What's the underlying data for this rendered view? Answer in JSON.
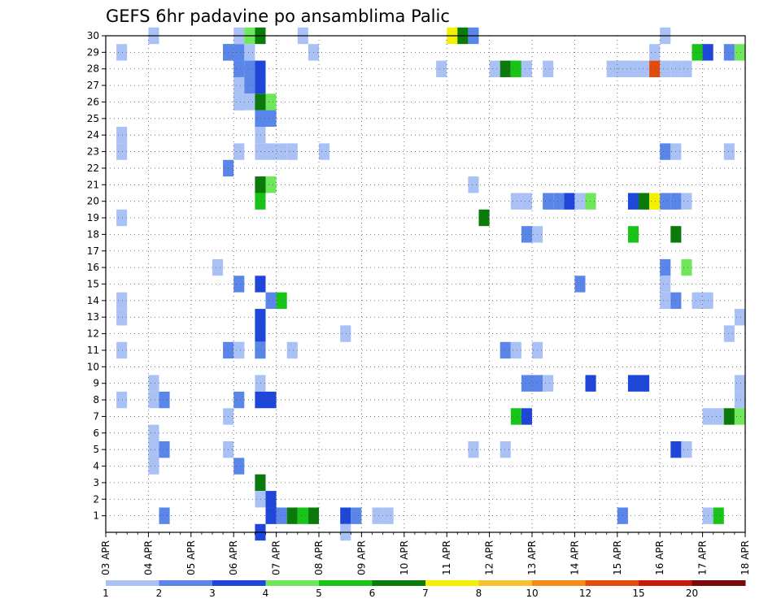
{
  "chart_data": {
    "type": "heatmap",
    "title": "GEFS 6hr padavine po ansamblima Palic",
    "x_ticks": [
      "03 APR",
      "04 APR",
      "05 APR",
      "06 APR",
      "07 APR",
      "08 APR",
      "09 APR",
      "10 APR",
      "11 APR",
      "12 APR",
      "13 APR",
      "14 APR",
      "15 APR",
      "16 APR",
      "17 APR",
      "18 APR"
    ],
    "y_ticks": [
      "1",
      "2",
      "3",
      "4",
      "5",
      "6",
      "7",
      "8",
      "9",
      "10",
      "11",
      "12",
      "13",
      "14",
      "15",
      "16",
      "17",
      "18",
      "19",
      "20",
      "21",
      "22",
      "23",
      "24",
      "25",
      "26",
      "27",
      "28",
      "29",
      "30"
    ],
    "x_range_steps": [
      0,
      60
    ],
    "y_range": [
      0,
      30
    ],
    "grid": true,
    "steps_per_day": 4,
    "colorbar": {
      "labels": [
        "1",
        "2",
        "3",
        "4",
        "5",
        "6",
        "7",
        "8",
        "10",
        "12",
        "15",
        "20"
      ],
      "colors": [
        "#a9c1f5",
        "#5a86ea",
        "#1e46d8",
        "#6ee85a",
        "#18c418",
        "#0a7a0a",
        "#f5f000",
        "#f8c030",
        "#f58c18",
        "#e34a0e",
        "#c81a0a",
        "#780a0a"
      ]
    },
    "cells": [
      [
        0,
        1,
        0
      ],
      [
        0,
        1,
        8
      ],
      [
        0,
        1,
        9
      ],
      [
        0,
        1,
        11
      ],
      [
        0,
        1,
        13
      ],
      [
        0,
        1,
        14
      ],
      [
        1,
        1,
        1
      ],
      [
        1,
        1,
        8
      ],
      [
        1,
        1,
        24
      ],
      [
        1,
        2,
        29
      ],
      [
        1,
        1,
        6
      ],
      [
        1,
        1,
        7
      ],
      [
        1,
        2,
        16
      ],
      [
        1,
        1,
        23
      ],
      [
        1,
        1,
        24
      ],
      [
        1,
        2,
        25
      ],
      [
        1,
        2,
        17
      ],
      [
        3,
        1,
        8
      ],
      [
        3,
        1,
        11
      ],
      [
        3,
        1,
        13
      ],
      [
        3,
        1,
        14
      ],
      [
        3,
        1,
        19
      ],
      [
        3,
        1,
        23
      ],
      [
        3,
        1,
        24
      ],
      [
        3,
        1,
        29
      ],
      [
        6,
        1,
        9
      ],
      [
        6,
        1,
        8
      ],
      [
        6,
        1,
        30
      ],
      [
        6,
        2,
        5
      ],
      [
        6,
        1,
        6
      ],
      [
        6,
        1,
        4
      ],
      [
        6,
        1,
        5
      ],
      [
        7,
        2,
        1
      ],
      [
        7,
        2,
        5
      ],
      [
        7,
        2,
        8
      ],
      [
        12,
        1,
        16
      ],
      [
        13,
        5,
        29
      ],
      [
        13,
        2,
        29
      ],
      [
        13,
        1,
        5
      ],
      [
        13,
        2,
        11
      ],
      [
        13,
        1,
        7
      ],
      [
        13,
        2,
        22
      ],
      [
        14,
        1,
        28
      ],
      [
        14,
        2,
        28
      ],
      [
        14,
        1,
        30
      ],
      [
        14,
        2,
        29
      ],
      [
        14,
        2,
        26
      ],
      [
        14,
        1,
        26
      ],
      [
        14,
        1,
        27
      ],
      [
        14,
        1,
        23
      ],
      [
        14,
        2,
        15
      ],
      [
        14,
        1,
        11
      ],
      [
        14,
        1,
        11
      ],
      [
        14,
        2,
        8
      ],
      [
        14,
        2,
        4
      ],
      [
        15,
        4,
        30
      ],
      [
        15,
        1,
        29
      ],
      [
        15,
        2,
        28
      ],
      [
        15,
        2,
        27
      ],
      [
        15,
        1,
        26
      ],
      [
        16,
        6,
        30
      ],
      [
        16,
        3,
        28
      ],
      [
        16,
        3,
        27
      ],
      [
        16,
        6,
        26
      ],
      [
        16,
        2,
        25
      ],
      [
        16,
        1,
        24
      ],
      [
        16,
        1,
        23
      ],
      [
        16,
        6,
        21
      ],
      [
        16,
        5,
        20
      ],
      [
        16,
        3,
        15
      ],
      [
        16,
        3,
        13
      ],
      [
        16,
        3,
        12
      ],
      [
        16,
        4,
        11
      ],
      [
        16,
        1,
        11
      ],
      [
        16,
        1,
        9
      ],
      [
        16,
        3,
        8
      ],
      [
        16,
        6,
        3
      ],
      [
        16,
        1,
        2
      ],
      [
        16,
        3,
        0
      ],
      [
        16,
        2,
        11
      ],
      [
        17,
        4,
        26
      ],
      [
        17,
        2,
        25
      ],
      [
        17,
        1,
        23
      ],
      [
        17,
        4,
        21
      ],
      [
        17,
        2,
        14
      ],
      [
        17,
        3,
        8
      ],
      [
        17,
        3,
        2
      ],
      [
        17,
        3,
        1
      ],
      [
        18,
        1,
        23
      ],
      [
        18,
        5,
        14
      ],
      [
        18,
        2,
        1
      ],
      [
        19,
        1,
        23
      ],
      [
        19,
        1,
        11
      ],
      [
        19,
        6,
        1
      ],
      [
        20,
        1,
        30
      ],
      [
        20,
        5,
        1
      ],
      [
        21,
        1,
        29
      ],
      [
        21,
        6,
        1
      ],
      [
        22,
        1,
        23
      ],
      [
        24,
        1,
        12
      ],
      [
        24,
        3,
        1
      ],
      [
        24,
        1,
        0
      ],
      [
        25,
        2,
        1
      ],
      [
        27,
        1,
        1
      ],
      [
        28,
        1,
        1
      ],
      [
        33,
        1,
        28
      ],
      [
        34,
        7,
        30
      ],
      [
        35,
        6,
        30
      ],
      [
        36,
        2,
        30
      ],
      [
        36,
        1,
        21
      ],
      [
        36,
        1,
        5
      ],
      [
        37,
        6,
        19
      ],
      [
        38,
        1,
        28
      ],
      [
        39,
        6,
        28
      ],
      [
        39,
        2,
        11
      ],
      [
        39,
        1,
        5
      ],
      [
        40,
        5,
        28
      ],
      [
        40,
        1,
        20
      ],
      [
        40,
        1,
        11
      ],
      [
        40,
        5,
        7
      ],
      [
        41,
        1,
        28
      ],
      [
        41,
        1,
        20
      ],
      [
        41,
        3,
        7
      ],
      [
        41,
        2,
        18
      ],
      [
        41,
        2,
        9
      ],
      [
        42,
        1,
        18
      ],
      [
        42,
        2,
        9
      ],
      [
        42,
        1,
        11
      ],
      [
        43,
        2,
        20
      ],
      [
        43,
        1,
        28
      ],
      [
        43,
        1,
        9
      ],
      [
        44,
        2,
        20
      ],
      [
        45,
        3,
        20
      ],
      [
        46,
        1,
        20
      ],
      [
        46,
        2,
        15
      ],
      [
        47,
        4,
        20
      ],
      [
        47,
        3,
        9
      ],
      [
        49,
        1,
        28
      ],
      [
        50,
        9,
        28
      ],
      [
        50,
        1,
        28
      ],
      [
        50,
        2,
        1
      ],
      [
        51,
        3,
        20
      ],
      [
        51,
        1,
        28
      ],
      [
        51,
        5,
        18
      ],
      [
        51,
        3,
        9
      ],
      [
        52,
        1,
        28
      ],
      [
        52,
        6,
        20
      ],
      [
        52,
        3,
        9
      ],
      [
        53,
        10,
        28
      ],
      [
        53,
        1,
        29
      ],
      [
        53,
        7,
        20
      ],
      [
        54,
        1,
        28
      ],
      [
        54,
        2,
        20
      ],
      [
        54,
        1,
        30
      ],
      [
        54,
        2,
        23
      ],
      [
        54,
        2,
        16
      ],
      [
        54,
        1,
        15
      ],
      [
        54,
        1,
        14
      ],
      [
        55,
        1,
        28
      ],
      [
        55,
        2,
        20
      ],
      [
        55,
        1,
        23
      ],
      [
        55,
        6,
        18
      ],
      [
        55,
        2,
        14
      ],
      [
        55,
        3,
        5
      ],
      [
        56,
        1,
        28
      ],
      [
        56,
        1,
        20
      ],
      [
        56,
        4,
        16
      ],
      [
        56,
        1,
        5
      ],
      [
        57,
        5,
        29
      ],
      [
        57,
        1,
        14
      ],
      [
        58,
        3,
        29
      ],
      [
        58,
        1,
        14
      ],
      [
        58,
        1,
        1
      ],
      [
        58,
        1,
        7
      ],
      [
        59,
        5,
        1
      ],
      [
        59,
        1,
        7
      ],
      [
        60,
        2,
        29
      ],
      [
        60,
        1,
        23
      ],
      [
        60,
        1,
        12
      ],
      [
        60,
        6,
        7
      ],
      [
        61,
        4,
        29
      ],
      [
        61,
        1,
        13
      ],
      [
        61,
        1,
        8
      ],
      [
        61,
        1,
        9
      ],
      [
        61,
        4,
        7
      ],
      [
        62,
        4,
        27
      ],
      [
        62,
        2,
        25
      ],
      [
        62,
        1,
        18
      ],
      [
        62,
        1,
        8
      ]
    ]
  }
}
